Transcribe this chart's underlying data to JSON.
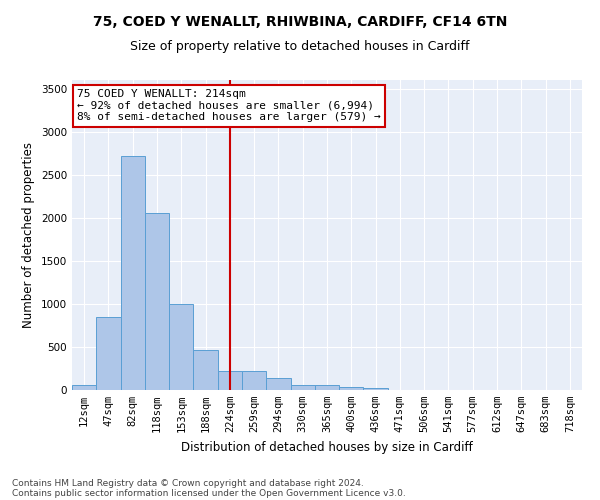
{
  "title_line1": "75, COED Y WENALLT, RHIWBINA, CARDIFF, CF14 6TN",
  "title_line2": "Size of property relative to detached houses in Cardiff",
  "xlabel": "Distribution of detached houses by size in Cardiff",
  "ylabel": "Number of detached properties",
  "categories": [
    "12sqm",
    "47sqm",
    "82sqm",
    "118sqm",
    "153sqm",
    "188sqm",
    "224sqm",
    "259sqm",
    "294sqm",
    "330sqm",
    "365sqm",
    "400sqm",
    "436sqm",
    "471sqm",
    "506sqm",
    "541sqm",
    "577sqm",
    "612sqm",
    "647sqm",
    "683sqm",
    "718sqm"
  ],
  "values": [
    60,
    850,
    2720,
    2060,
    1000,
    460,
    225,
    215,
    135,
    60,
    55,
    30,
    20,
    0,
    0,
    0,
    0,
    0,
    0,
    0,
    0
  ],
  "bar_color": "#aec6e8",
  "bar_edge_color": "#5a9fd4",
  "vline_x": 6.0,
  "vline_color": "#cc0000",
  "annotation_text": "75 COED Y WENALLT: 214sqm\n← 92% of detached houses are smaller (6,994)\n8% of semi-detached houses are larger (579) →",
  "annotation_box_color": "#cc0000",
  "ylim": [
    0,
    3600
  ],
  "yticks": [
    0,
    500,
    1000,
    1500,
    2000,
    2500,
    3000,
    3500
  ],
  "bg_color": "#e8eef8",
  "footer_line1": "Contains HM Land Registry data © Crown copyright and database right 2024.",
  "footer_line2": "Contains public sector information licensed under the Open Government Licence v3.0.",
  "title_fontsize": 10,
  "subtitle_fontsize": 9,
  "axis_label_fontsize": 8.5,
  "tick_fontsize": 7.5,
  "annotation_fontsize": 8,
  "footer_fontsize": 6.5
}
